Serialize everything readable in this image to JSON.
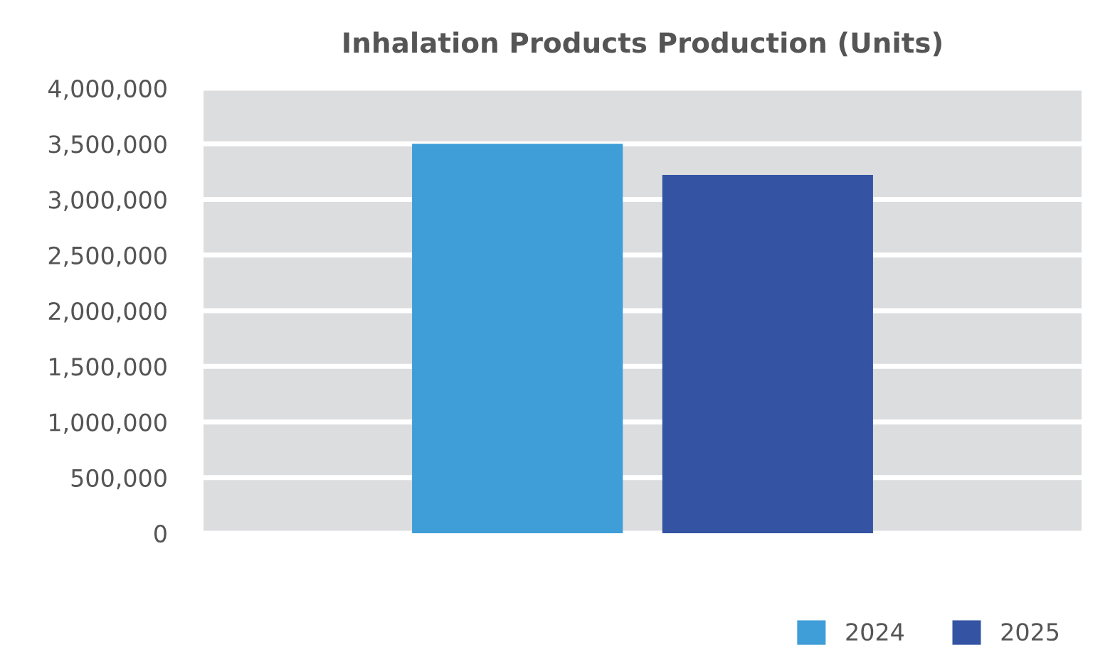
{
  "chart_data": {
    "type": "bar",
    "title": "Inhalation Products Production (Units)",
    "categories": [
      null
    ],
    "series": [
      {
        "name": "2024",
        "color": "#3f9dd7",
        "values": [
          3500000
        ]
      },
      {
        "name": "2025",
        "color": "#3453a3",
        "values": [
          3220000
        ]
      }
    ],
    "ylim": [
      0,
      4000000
    ],
    "yticks": [
      {
        "value": 0,
        "label": "0"
      },
      {
        "value": 500000,
        "label": "500,000"
      },
      {
        "value": 1000000,
        "label": "1,000,000"
      },
      {
        "value": 1500000,
        "label": "1,500,000"
      },
      {
        "value": 2000000,
        "label": "2,000,000"
      },
      {
        "value": 2500000,
        "label": "2,500,000"
      },
      {
        "value": 3000000,
        "label": "3,000,000"
      },
      {
        "value": 3500000,
        "label": "3,500,000"
      },
      {
        "value": 4000000,
        "label": "4,000,000"
      }
    ],
    "grid": "y",
    "legend": "bottom right"
  }
}
